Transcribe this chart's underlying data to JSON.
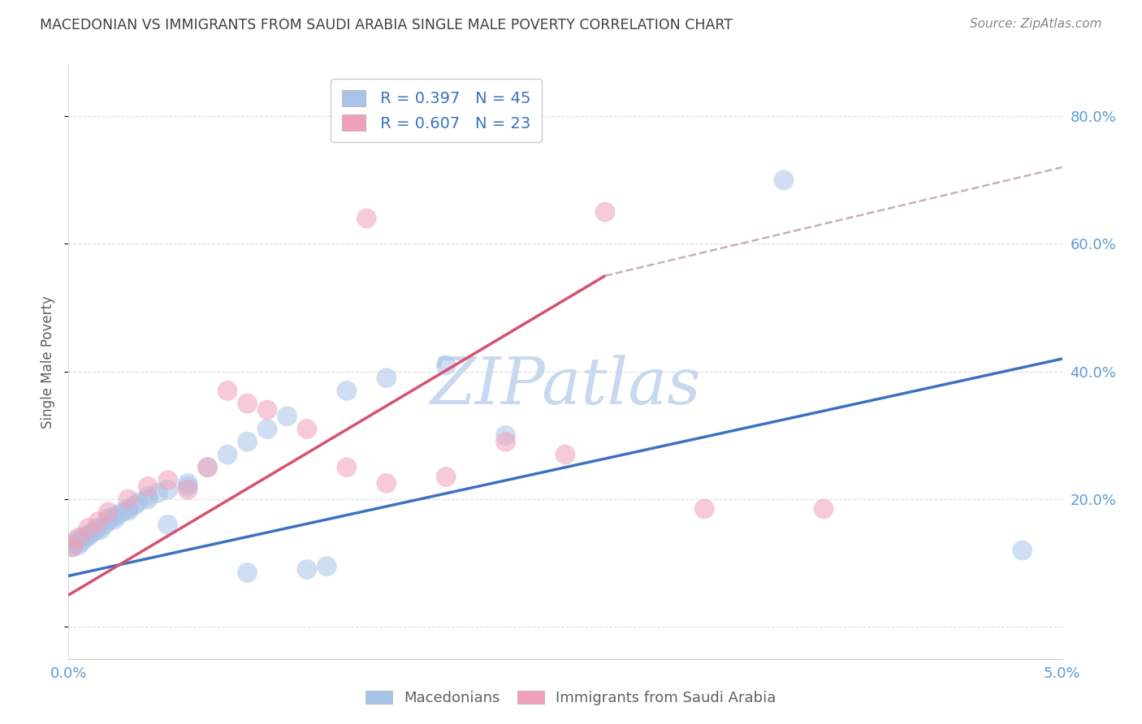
{
  "title": "MACEDONIAN VS IMMIGRANTS FROM SAUDI ARABIA SINGLE MALE POVERTY CORRELATION CHART",
  "source": "Source: ZipAtlas.com",
  "ylabel": "Single Male Poverty",
  "ytick_labels": [
    "",
    "20.0%",
    "40.0%",
    "60.0%",
    "80.0%"
  ],
  "ytick_vals": [
    0.0,
    0.2,
    0.4,
    0.6,
    0.8
  ],
  "xlim": [
    0.0,
    0.05
  ],
  "ylim": [
    -0.05,
    0.88
  ],
  "watermark": "ZIPatlas",
  "legend_blue_r": "R = 0.397",
  "legend_blue_n": "N = 45",
  "legend_pink_r": "R = 0.607",
  "legend_pink_n": "N = 23",
  "blue_scatter_x": [
    0.0002,
    0.0003,
    0.0004,
    0.0005,
    0.0006,
    0.0007,
    0.0008,
    0.001,
    0.001,
    0.0012,
    0.0013,
    0.0015,
    0.0016,
    0.0018,
    0.002,
    0.002,
    0.0022,
    0.0023,
    0.0025,
    0.0027,
    0.003,
    0.003,
    0.0033,
    0.0035,
    0.004,
    0.004,
    0.0045,
    0.005,
    0.005,
    0.006,
    0.006,
    0.007,
    0.008,
    0.009,
    0.009,
    0.01,
    0.011,
    0.012,
    0.013,
    0.014,
    0.016,
    0.019,
    0.022,
    0.036,
    0.048
  ],
  "blue_scatter_y": [
    0.125,
    0.13,
    0.135,
    0.128,
    0.132,
    0.14,
    0.138,
    0.145,
    0.142,
    0.148,
    0.15,
    0.155,
    0.152,
    0.16,
    0.165,
    0.17,
    0.172,
    0.168,
    0.175,
    0.18,
    0.185,
    0.182,
    0.19,
    0.195,
    0.2,
    0.205,
    0.21,
    0.215,
    0.16,
    0.22,
    0.225,
    0.25,
    0.27,
    0.29,
    0.085,
    0.31,
    0.33,
    0.09,
    0.095,
    0.37,
    0.39,
    0.41,
    0.3,
    0.7,
    0.12
  ],
  "pink_scatter_x": [
    0.0002,
    0.0005,
    0.001,
    0.0015,
    0.002,
    0.003,
    0.004,
    0.005,
    0.006,
    0.007,
    0.008,
    0.009,
    0.01,
    0.012,
    0.014,
    0.015,
    0.016,
    0.019,
    0.022,
    0.025,
    0.027,
    0.032,
    0.038
  ],
  "pink_scatter_y": [
    0.125,
    0.14,
    0.155,
    0.165,
    0.18,
    0.2,
    0.22,
    0.23,
    0.215,
    0.25,
    0.37,
    0.35,
    0.34,
    0.31,
    0.25,
    0.64,
    0.225,
    0.235,
    0.29,
    0.27,
    0.65,
    0.185,
    0.185
  ],
  "blue_line_x": [
    0.0,
    0.05
  ],
  "blue_line_y": [
    0.08,
    0.42
  ],
  "pink_line_x": [
    0.0,
    0.027
  ],
  "pink_line_y": [
    0.05,
    0.55
  ],
  "dashed_line_x": [
    0.027,
    0.05
  ],
  "dashed_line_y": [
    0.55,
    0.72
  ],
  "blue_color": "#A8C4E8",
  "blue_line_color": "#3A72C0",
  "pink_color": "#F0A0B8",
  "pink_line_color": "#D85070",
  "dashed_line_color": "#C8B0B8",
  "background_color": "#FFFFFF",
  "grid_color": "#DDDDDD",
  "axis_label_color": "#5B9BD5",
  "title_color": "#404040",
  "source_color": "#888888",
  "ylabel_color": "#606060",
  "watermark_color": "#C8D8EF",
  "legend_text_color": "#3A72C0",
  "bottom_legend_text_color": "#606060"
}
